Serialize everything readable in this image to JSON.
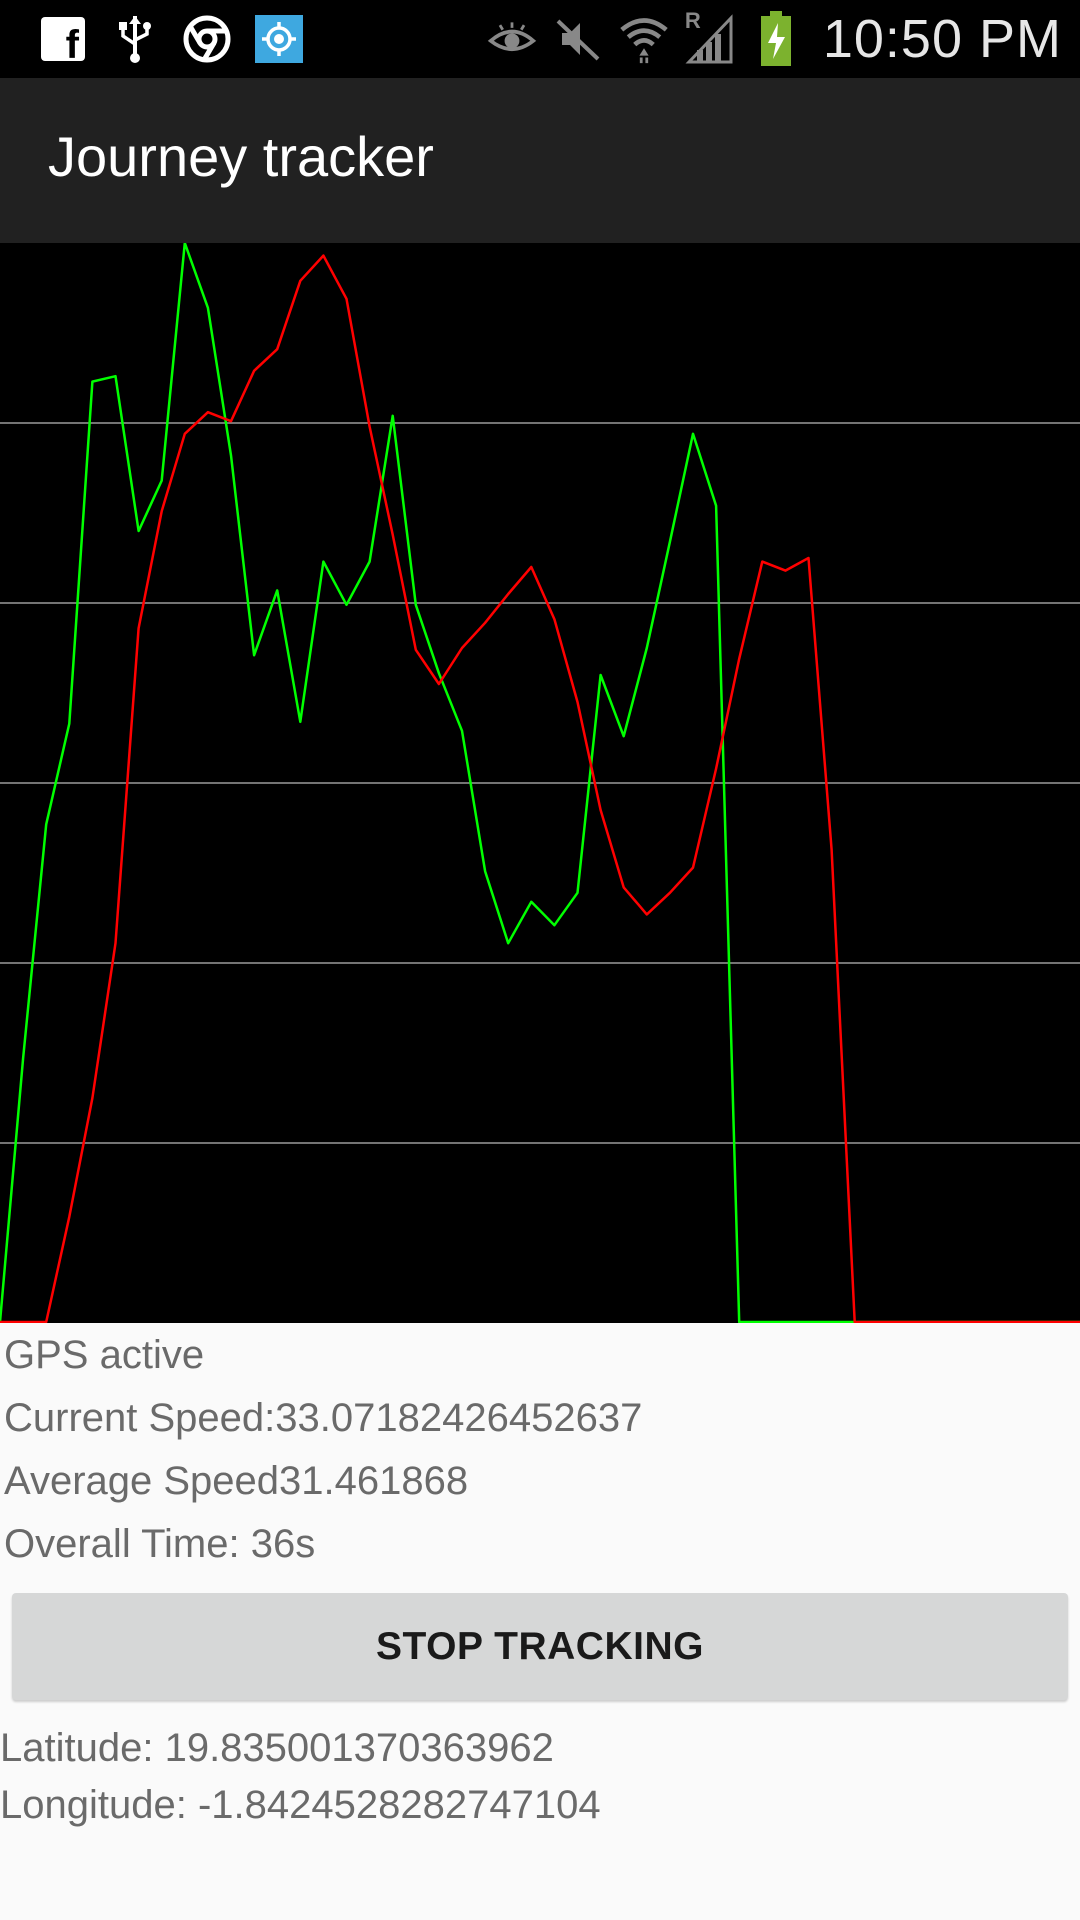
{
  "status_bar": {
    "time": "10:50 PM",
    "left_icons": [
      "facebook-icon",
      "usb-icon",
      "chrome-icon",
      "location-target-icon"
    ],
    "right_icons": [
      "eye-icon",
      "mute-icon",
      "wifi-icon",
      "roaming-signal-icon",
      "battery-charging-icon"
    ],
    "roaming_label": "R",
    "facebook_glyph": "f"
  },
  "app": {
    "title": "Journey tracker"
  },
  "chart_data": {
    "type": "line",
    "grid": "horizontal",
    "ylim": [
      0,
      6
    ],
    "gridlines": [
      1,
      2,
      3,
      4,
      5
    ],
    "series": [
      {
        "color": "#00ff00",
        "values": [
          0,
          1.47,
          2.77,
          3.33,
          5.23,
          5.26,
          4.4,
          4.68,
          6.0,
          5.64,
          4.82,
          3.71,
          4.07,
          3.34,
          4.23,
          3.99,
          4.23,
          5.04,
          3.99,
          3.61,
          3.29,
          2.51,
          2.11,
          2.34,
          2.21,
          2.39,
          3.6,
          3.26,
          3.75,
          4.34,
          4.94,
          4.54,
          0,
          0,
          0,
          0,
          0,
          0
        ]
      },
      {
        "color": "#ff0000",
        "values": [
          0,
          0,
          0,
          0.59,
          1.25,
          2.11,
          3.86,
          4.51,
          4.94,
          5.06,
          5.01,
          5.29,
          5.41,
          5.79,
          5.93,
          5.69,
          4.98,
          4.38,
          3.74,
          3.55,
          3.75,
          3.89,
          4.05,
          4.2,
          3.91,
          3.45,
          2.85,
          2.42,
          2.27,
          2.39,
          2.53,
          3.08,
          3.69,
          4.23,
          4.18,
          4.25,
          2.63,
          0,
          0,
          0
        ]
      }
    ]
  },
  "info": {
    "gps_status": "GPS active",
    "current_speed": "Current Speed:33.07182426452637",
    "average_speed": "Average Speed31.461868",
    "overall_time": "Overall Time: 36s"
  },
  "stop_button_label": "STOP TRACKING",
  "coords": {
    "latitude": "Latitude: 19.835001370363962",
    "longitude": "Longitude: -1.8424528282747104"
  }
}
